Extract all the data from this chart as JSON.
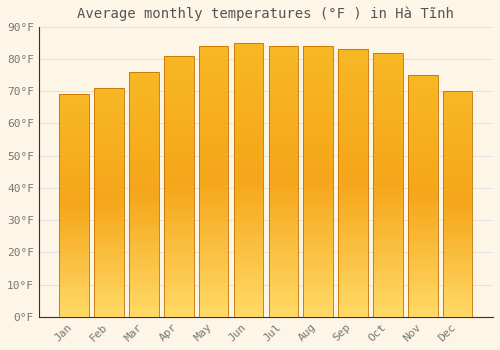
{
  "title": "Average monthly temperatures (°F ) in Hà Tĩnh",
  "months": [
    "Jan",
    "Feb",
    "Mar",
    "Apr",
    "May",
    "Jun",
    "Jul",
    "Aug",
    "Sep",
    "Oct",
    "Nov",
    "Dec"
  ],
  "values": [
    69,
    71,
    76,
    81,
    84,
    85,
    84,
    84,
    83,
    82,
    75,
    70
  ],
  "bar_color_top": "#F5A623",
  "bar_color_bottom": "#FFD080",
  "bar_edge_color": "#C87000",
  "background_color": "#FDF5E6",
  "grid_color": "#DDDDDD",
  "ylim": [
    0,
    90
  ],
  "yticks": [
    0,
    10,
    20,
    30,
    40,
    50,
    60,
    70,
    80,
    90
  ],
  "ytick_labels": [
    "0°F",
    "10°F",
    "20°F",
    "30°F",
    "40°F",
    "50°F",
    "60°F",
    "70°F",
    "80°F",
    "90°F"
  ],
  "title_fontsize": 10,
  "tick_fontsize": 8,
  "bar_width": 0.85
}
